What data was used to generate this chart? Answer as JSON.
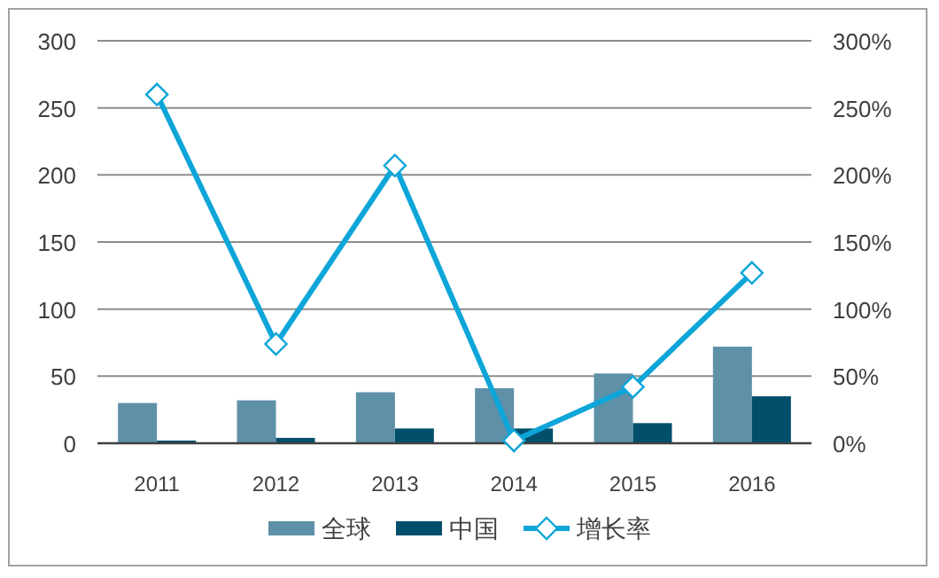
{
  "chart_data": {
    "type": "bar",
    "categories": [
      "2011",
      "2012",
      "2013",
      "2014",
      "2015",
      "2016"
    ],
    "series": [
      {
        "name": "全球",
        "color": "#5e90a8",
        "values": [
          30,
          32,
          38,
          41,
          52,
          72
        ]
      },
      {
        "name": "中国",
        "color": "#014f6b",
        "values": [
          2,
          4,
          11,
          11,
          15,
          35
        ]
      },
      {
        "name": "增长率",
        "type": "line",
        "axis": "y2",
        "color": "#0ea5d9",
        "values": [
          260,
          74,
          207,
          2,
          42,
          127
        ]
      }
    ],
    "ylim": [
      0,
      300
    ],
    "yticks": [
      0,
      50,
      100,
      150,
      200,
      250,
      300
    ],
    "y2lim": [
      0,
      300
    ],
    "y2ticks": [
      {
        "value": 0,
        "label": "0%"
      },
      {
        "value": 50,
        "label": "50%"
      },
      {
        "value": 100,
        "label": "100%"
      },
      {
        "value": 150,
        "label": "150%"
      },
      {
        "value": 200,
        "label": "200%"
      },
      {
        "value": 250,
        "label": "250%"
      },
      {
        "value": 300,
        "label": "300%"
      }
    ],
    "grid": "y",
    "legend": "bottom",
    "marker": "diamond"
  }
}
